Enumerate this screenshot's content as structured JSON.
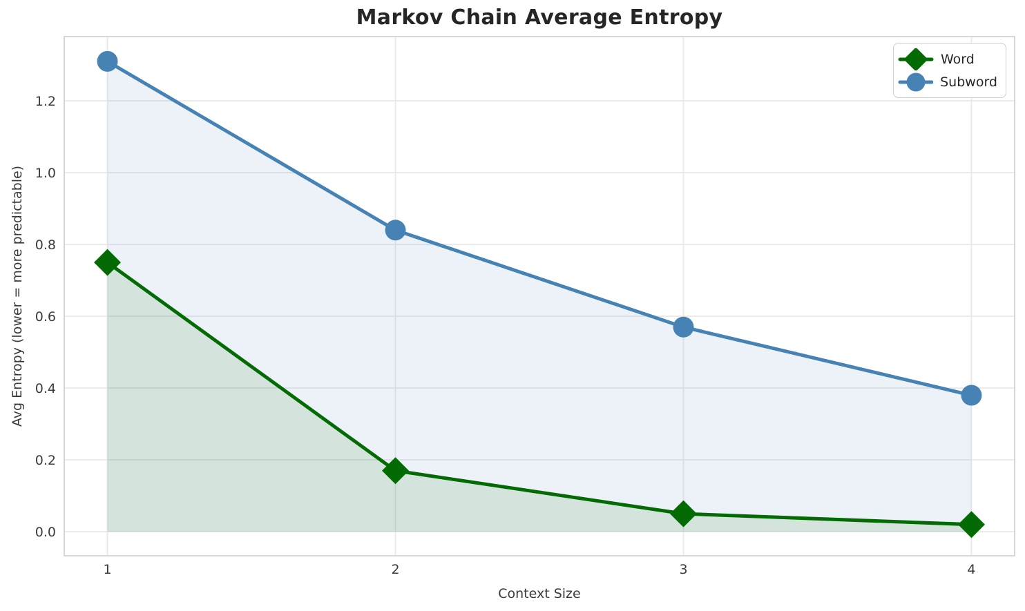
{
  "chart_data": {
    "type": "line",
    "title": "Markov Chain Average Entropy",
    "xlabel": "Context Size",
    "ylabel": "Avg Entropy (lower = more predictable)",
    "x": [
      1,
      2,
      3,
      4
    ],
    "series": [
      {
        "name": "Word",
        "values": [
          0.75,
          0.17,
          0.05,
          0.02
        ],
        "color": "#046b04",
        "marker": "diamond"
      },
      {
        "name": "Subword",
        "values": [
          1.31,
          0.84,
          0.57,
          0.38
        ],
        "color": "#4682b4",
        "marker": "circle"
      }
    ],
    "fill_under_lines": true,
    "fill_baseline": 0.0,
    "fill_opacity": 0.1,
    "xticks": [
      1,
      2,
      3,
      4
    ],
    "yticks": [
      0.0,
      0.2,
      0.4,
      0.6,
      0.8,
      1.0,
      1.2
    ],
    "xlim": [
      0.85,
      4.15
    ],
    "ylim": [
      -0.067,
      1.379
    ],
    "grid": true,
    "legend_position": "upper right",
    "colors": {
      "grid": "#e8e8e8",
      "spine": "#d6d6d6",
      "tick_text": "#3b3b3b",
      "title_text": "#262626",
      "background": "#ffffff"
    }
  }
}
